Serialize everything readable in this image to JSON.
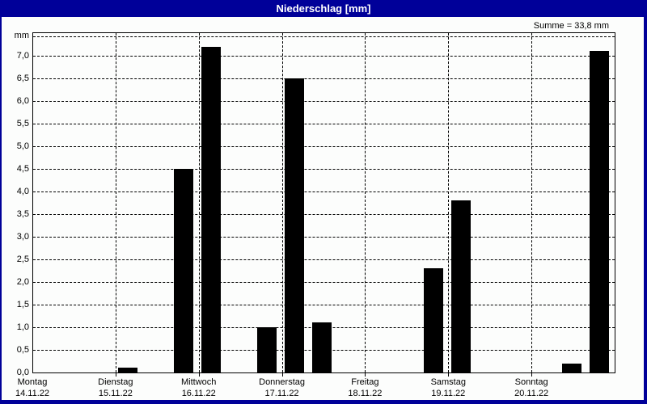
{
  "window": {
    "title": "Niederschlag [mm]",
    "summary": "Summe = 33,8 mm"
  },
  "colors": {
    "titlebar": "#000099",
    "window_border": "#000099",
    "panel_background": "#fcfdfc",
    "bar": "#000000",
    "grid": "#000000",
    "title_text": "#ffffff",
    "text": "#000000"
  },
  "chart_data": {
    "type": "bar",
    "title": "Niederschlag [mm]",
    "unit": "mm",
    "total_label": "Summe = 33,8 mm",
    "total_mm": 33.8,
    "ylim": [
      0,
      7.5
    ],
    "ytick_step": 0.5,
    "ytick_labels": [
      "0,0",
      "0,5",
      "1,0",
      "1,5",
      "2,0",
      "2,5",
      "3,0",
      "3,5",
      "4,0",
      "4,5",
      "5,0",
      "5,5",
      "6,0",
      "6,5",
      "7,0"
    ],
    "grid": true,
    "legend": "none",
    "slots_per_day": 3,
    "categories": [
      {
        "name": "Montag",
        "date": "14.11.22"
      },
      {
        "name": "Dienstag",
        "date": "15.11.22"
      },
      {
        "name": "Mittwoch",
        "date": "16.11.22"
      },
      {
        "name": "Donnerstag",
        "date": "17.11.22"
      },
      {
        "name": "Freitag",
        "date": "18.11.22"
      },
      {
        "name": "Samstag",
        "date": "19.11.22"
      },
      {
        "name": "Sonntag",
        "date": "20.11.22"
      }
    ],
    "bars": [
      {
        "day_index": 1,
        "day": "Dienstag",
        "slot": 0,
        "value_mm": 0.1
      },
      {
        "day_index": 1,
        "day": "Dienstag",
        "slot": 2,
        "value_mm": 4.5
      },
      {
        "day_index": 2,
        "day": "Mittwoch",
        "slot": 0,
        "value_mm": 7.2
      },
      {
        "day_index": 2,
        "day": "Mittwoch",
        "slot": 2,
        "value_mm": 1.0
      },
      {
        "day_index": 3,
        "day": "Donnerstag",
        "slot": 0,
        "value_mm": 6.5
      },
      {
        "day_index": 3,
        "day": "Donnerstag",
        "slot": 1,
        "value_mm": 1.1
      },
      {
        "day_index": 4,
        "day": "Freitag",
        "slot": 2,
        "value_mm": 2.3
      },
      {
        "day_index": 5,
        "day": "Samstag",
        "slot": 0,
        "value_mm": 3.8
      },
      {
        "day_index": 6,
        "day": "Sonntag",
        "slot": 1,
        "value_mm": 0.2
      },
      {
        "day_index": 6,
        "day": "Sonntag",
        "slot": 2,
        "value_mm": 7.1
      }
    ]
  }
}
